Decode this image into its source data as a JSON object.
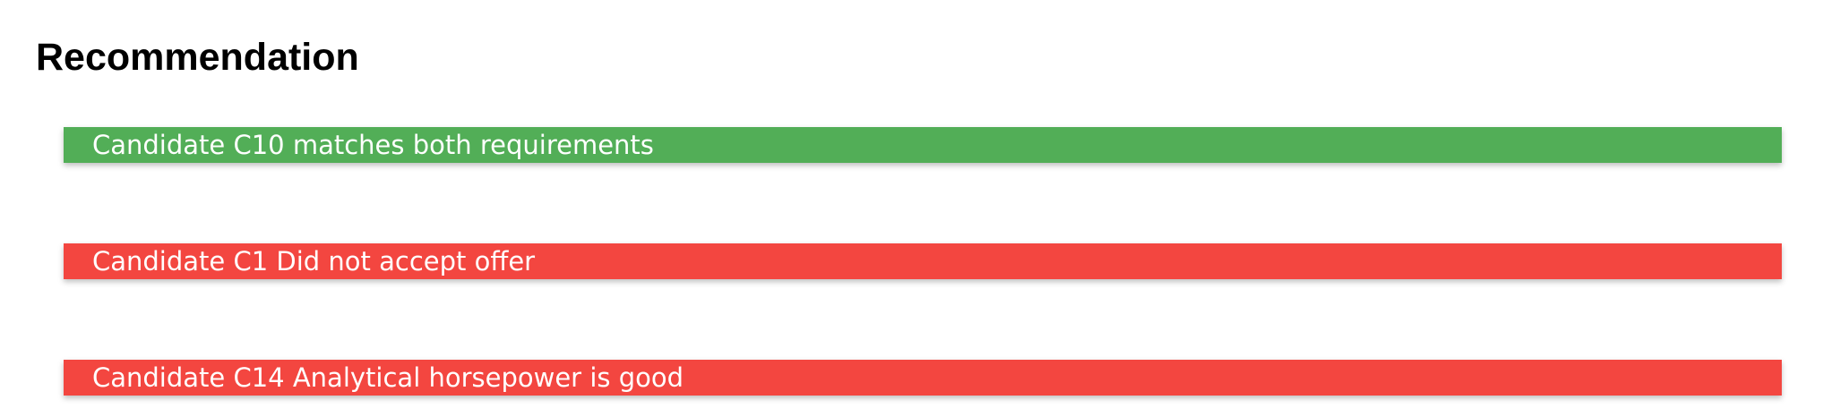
{
  "header": {
    "title": "Recommendation"
  },
  "recommendations": [
    {
      "text": "Candidate C10 matches both requirements",
      "status": "positive",
      "color": "#52ae57"
    },
    {
      "text": "Candidate C1 Did not accept offer",
      "status": "negative",
      "color": "#f34640"
    },
    {
      "text": "Candidate C14 Analytical horsepower is good",
      "status": "negative",
      "color": "#f34640"
    }
  ]
}
